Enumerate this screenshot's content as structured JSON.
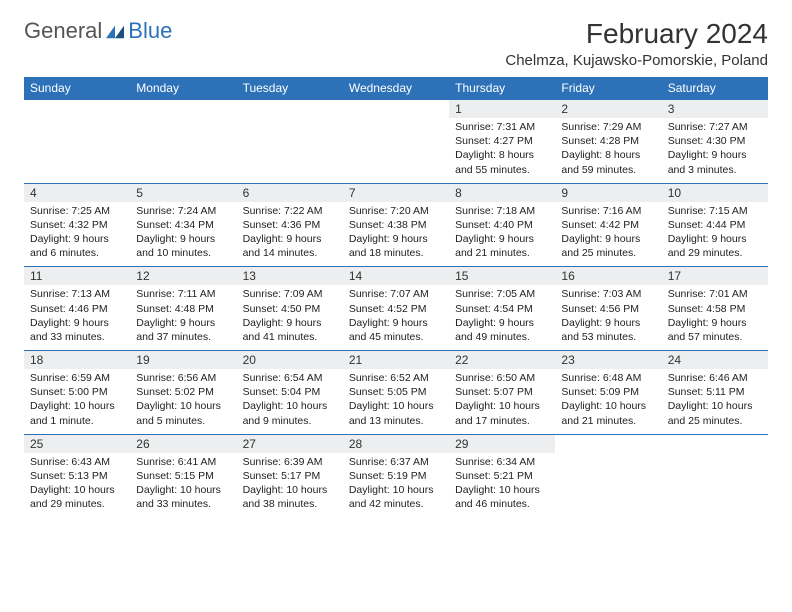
{
  "brand": {
    "part1": "General",
    "part2": "Blue"
  },
  "title": "February 2024",
  "location": "Chelmza, Kujawsko-Pomorskie, Poland",
  "style": {
    "header_bg": "#2d72b8",
    "header_text": "#ffffff",
    "daynum_bg": "#eceeef",
    "border_color": "#2d72b8",
    "page_bg": "#ffffff",
    "text_color": "#222222",
    "title_fontsize": 28,
    "body_fontsize": 10.5
  },
  "dayHeaders": [
    "Sunday",
    "Monday",
    "Tuesday",
    "Wednesday",
    "Thursday",
    "Friday",
    "Saturday"
  ],
  "weeks": [
    [
      null,
      null,
      null,
      null,
      {
        "n": "1",
        "sr": "7:31 AM",
        "ss": "4:27 PM",
        "dl": "8 hours and 55 minutes."
      },
      {
        "n": "2",
        "sr": "7:29 AM",
        "ss": "4:28 PM",
        "dl": "8 hours and 59 minutes."
      },
      {
        "n": "3",
        "sr": "7:27 AM",
        "ss": "4:30 PM",
        "dl": "9 hours and 3 minutes."
      }
    ],
    [
      {
        "n": "4",
        "sr": "7:25 AM",
        "ss": "4:32 PM",
        "dl": "9 hours and 6 minutes."
      },
      {
        "n": "5",
        "sr": "7:24 AM",
        "ss": "4:34 PM",
        "dl": "9 hours and 10 minutes."
      },
      {
        "n": "6",
        "sr": "7:22 AM",
        "ss": "4:36 PM",
        "dl": "9 hours and 14 minutes."
      },
      {
        "n": "7",
        "sr": "7:20 AM",
        "ss": "4:38 PM",
        "dl": "9 hours and 18 minutes."
      },
      {
        "n": "8",
        "sr": "7:18 AM",
        "ss": "4:40 PM",
        "dl": "9 hours and 21 minutes."
      },
      {
        "n": "9",
        "sr": "7:16 AM",
        "ss": "4:42 PM",
        "dl": "9 hours and 25 minutes."
      },
      {
        "n": "10",
        "sr": "7:15 AM",
        "ss": "4:44 PM",
        "dl": "9 hours and 29 minutes."
      }
    ],
    [
      {
        "n": "11",
        "sr": "7:13 AM",
        "ss": "4:46 PM",
        "dl": "9 hours and 33 minutes."
      },
      {
        "n": "12",
        "sr": "7:11 AM",
        "ss": "4:48 PM",
        "dl": "9 hours and 37 minutes."
      },
      {
        "n": "13",
        "sr": "7:09 AM",
        "ss": "4:50 PM",
        "dl": "9 hours and 41 minutes."
      },
      {
        "n": "14",
        "sr": "7:07 AM",
        "ss": "4:52 PM",
        "dl": "9 hours and 45 minutes."
      },
      {
        "n": "15",
        "sr": "7:05 AM",
        "ss": "4:54 PM",
        "dl": "9 hours and 49 minutes."
      },
      {
        "n": "16",
        "sr": "7:03 AM",
        "ss": "4:56 PM",
        "dl": "9 hours and 53 minutes."
      },
      {
        "n": "17",
        "sr": "7:01 AM",
        "ss": "4:58 PM",
        "dl": "9 hours and 57 minutes."
      }
    ],
    [
      {
        "n": "18",
        "sr": "6:59 AM",
        "ss": "5:00 PM",
        "dl": "10 hours and 1 minute."
      },
      {
        "n": "19",
        "sr": "6:56 AM",
        "ss": "5:02 PM",
        "dl": "10 hours and 5 minutes."
      },
      {
        "n": "20",
        "sr": "6:54 AM",
        "ss": "5:04 PM",
        "dl": "10 hours and 9 minutes."
      },
      {
        "n": "21",
        "sr": "6:52 AM",
        "ss": "5:05 PM",
        "dl": "10 hours and 13 minutes."
      },
      {
        "n": "22",
        "sr": "6:50 AM",
        "ss": "5:07 PM",
        "dl": "10 hours and 17 minutes."
      },
      {
        "n": "23",
        "sr": "6:48 AM",
        "ss": "5:09 PM",
        "dl": "10 hours and 21 minutes."
      },
      {
        "n": "24",
        "sr": "6:46 AM",
        "ss": "5:11 PM",
        "dl": "10 hours and 25 minutes."
      }
    ],
    [
      {
        "n": "25",
        "sr": "6:43 AM",
        "ss": "5:13 PM",
        "dl": "10 hours and 29 minutes."
      },
      {
        "n": "26",
        "sr": "6:41 AM",
        "ss": "5:15 PM",
        "dl": "10 hours and 33 minutes."
      },
      {
        "n": "27",
        "sr": "6:39 AM",
        "ss": "5:17 PM",
        "dl": "10 hours and 38 minutes."
      },
      {
        "n": "28",
        "sr": "6:37 AM",
        "ss": "5:19 PM",
        "dl": "10 hours and 42 minutes."
      },
      {
        "n": "29",
        "sr": "6:34 AM",
        "ss": "5:21 PM",
        "dl": "10 hours and 46 minutes."
      },
      null,
      null
    ]
  ],
  "labels": {
    "sunrise": "Sunrise:",
    "sunset": "Sunset:",
    "daylight": "Daylight:"
  }
}
